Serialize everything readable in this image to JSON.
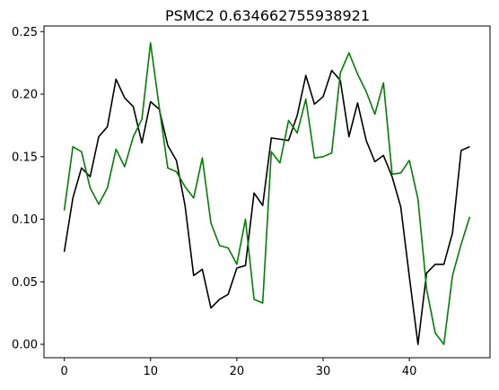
{
  "chart_data": {
    "type": "line",
    "title": "PSMC2 0.634662755938921",
    "xlabel": "",
    "ylabel": "",
    "xlim": [
      -2.35,
      49.35
    ],
    "ylim": [
      -0.0107,
      0.2545
    ],
    "xticks": [
      0,
      10,
      20,
      30,
      40
    ],
    "yticks": [
      0.0,
      0.05,
      0.1,
      0.15,
      0.2,
      0.25
    ],
    "ytick_labels": [
      "0.00",
      "0.05",
      "0.10",
      "0.15",
      "0.20",
      "0.25"
    ],
    "grid": false,
    "series": [
      {
        "color": "#000000",
        "x": [
          0,
          1,
          2,
          3,
          4,
          5,
          6,
          7,
          8,
          9,
          10,
          11,
          12,
          13,
          14,
          15,
          16,
          17,
          18,
          19,
          20,
          21,
          22,
          23,
          24,
          25,
          26,
          27,
          28,
          29,
          30,
          31,
          32,
          33,
          34,
          35,
          36,
          37,
          38,
          39,
          40,
          41,
          42,
          43,
          44,
          45,
          46,
          47
        ],
        "values": [
          0.074,
          0.117,
          0.141,
          0.134,
          0.166,
          0.174,
          0.212,
          0.197,
          0.19,
          0.161,
          0.194,
          0.188,
          0.159,
          0.147,
          0.111,
          0.055,
          0.06,
          0.029,
          0.036,
          0.04,
          0.061,
          0.063,
          0.121,
          0.111,
          0.165,
          0.164,
          0.163,
          0.183,
          0.215,
          0.192,
          0.198,
          0.219,
          0.211,
          0.166,
          0.193,
          0.163,
          0.146,
          0.151,
          0.134,
          0.11,
          0.054,
          0.0,
          0.057,
          0.064,
          0.064,
          0.089,
          0.155,
          0.158
        ]
      },
      {
        "color": "#008000",
        "x": [
          0,
          1,
          2,
          3,
          4,
          5,
          6,
          7,
          8,
          9,
          10,
          11,
          12,
          13,
          14,
          15,
          16,
          17,
          18,
          19,
          20,
          21,
          22,
          23,
          24,
          25,
          26,
          27,
          28,
          29,
          30,
          31,
          32,
          33,
          34,
          35,
          36,
          37,
          38,
          39,
          40,
          41,
          42,
          43,
          44,
          45,
          46,
          47
        ],
        "values": [
          0.107,
          0.158,
          0.154,
          0.125,
          0.112,
          0.125,
          0.156,
          0.142,
          0.166,
          0.18,
          0.241,
          0.19,
          0.141,
          0.138,
          0.126,
          0.117,
          0.149,
          0.097,
          0.079,
          0.077,
          0.064,
          0.1,
          0.036,
          0.033,
          0.154,
          0.145,
          0.179,
          0.169,
          0.196,
          0.149,
          0.15,
          0.153,
          0.217,
          0.233,
          0.216,
          0.202,
          0.184,
          0.209,
          0.136,
          0.137,
          0.147,
          0.116,
          0.044,
          0.009,
          0.0,
          0.055,
          0.08,
          0.102
        ]
      }
    ]
  }
}
